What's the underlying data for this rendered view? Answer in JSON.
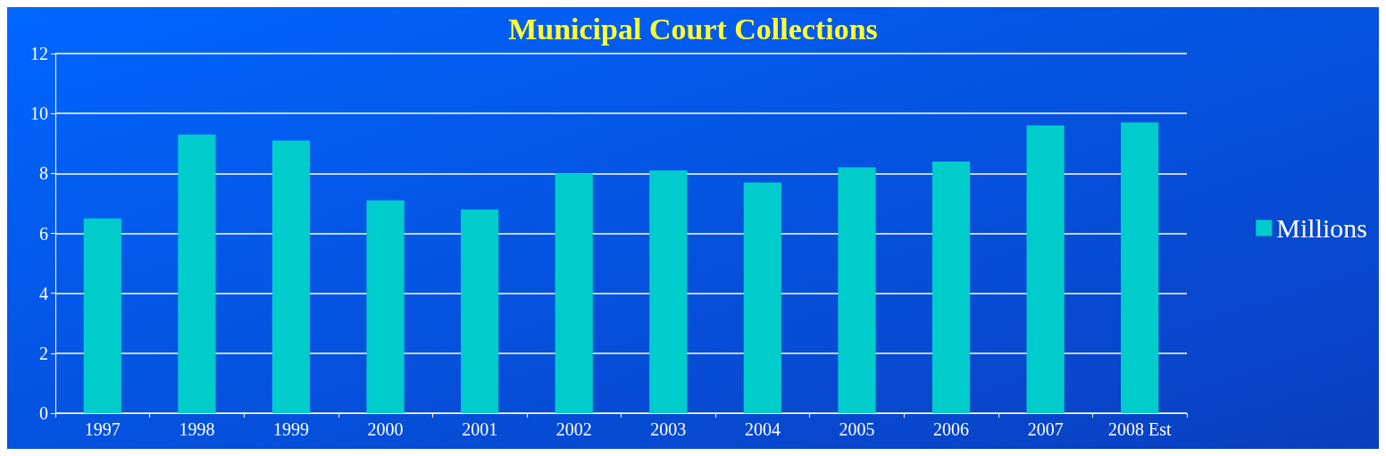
{
  "chart_data": {
    "type": "bar",
    "title": "Municipal Court Collections",
    "categories": [
      "1997",
      "1998",
      "1999",
      "2000",
      "2001",
      "2002",
      "2003",
      "2004",
      "2005",
      "2006",
      "2007",
      "2008 Est"
    ],
    "series": [
      {
        "name": "Millions",
        "color": "#00cccc",
        "values": [
          6.5,
          9.3,
          9.1,
          7.1,
          6.8,
          8.0,
          8.1,
          7.7,
          8.2,
          8.4,
          9.6,
          9.7
        ]
      }
    ],
    "ylim": [
      0,
      12
    ],
    "yticks": [
      0,
      2,
      4,
      6,
      8,
      10,
      12
    ],
    "grid": "y",
    "legend": "right"
  }
}
